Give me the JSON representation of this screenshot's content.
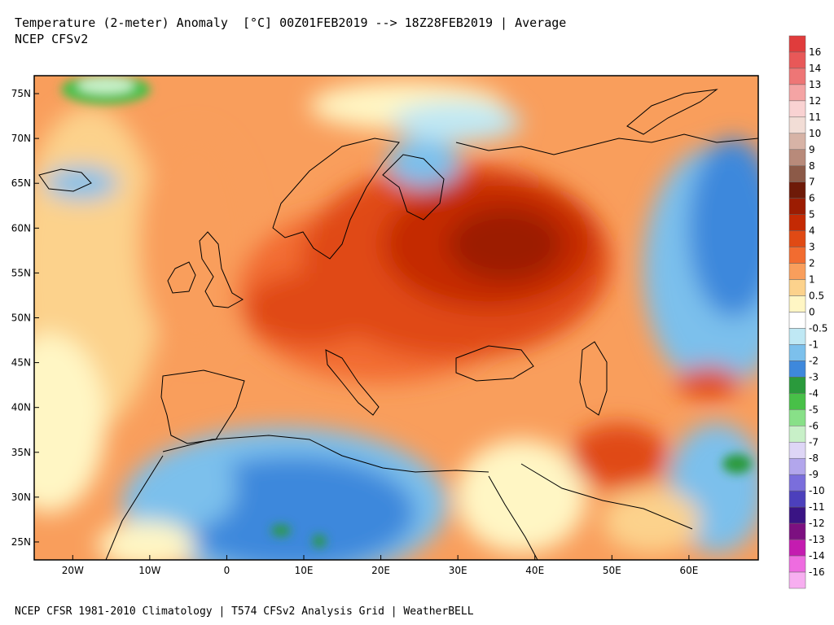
{
  "header": {
    "title": "Temperature (2-meter) Anomaly  [°C] 00Z01FEB2019 --> 18Z28FEB2019 | Average",
    "subtitle": "NCEP CFSv2"
  },
  "footer": {
    "credit": "NCEP CFSR 1981-2010 Climatology | T574 CFSv2 Analysis Grid | WeatherBELL"
  },
  "map_data": {
    "lon_range": [
      -25,
      69
    ],
    "lat_range": [
      23,
      77
    ],
    "lon_ticks": [
      {
        "value": -20,
        "label": "20W"
      },
      {
        "value": -10,
        "label": "10W"
      },
      {
        "value": 0,
        "label": "0"
      },
      {
        "value": 10,
        "label": "10E"
      },
      {
        "value": 20,
        "label": "20E"
      },
      {
        "value": 30,
        "label": "30E"
      },
      {
        "value": 40,
        "label": "40E"
      },
      {
        "value": 50,
        "label": "50E"
      },
      {
        "value": 60,
        "label": "60E"
      }
    ],
    "lat_ticks": [
      {
        "value": 75,
        "label": "75N"
      },
      {
        "value": 70,
        "label": "70N"
      },
      {
        "value": 65,
        "label": "65N"
      },
      {
        "value": 60,
        "label": "60N"
      },
      {
        "value": 55,
        "label": "55N"
      },
      {
        "value": 50,
        "label": "50N"
      },
      {
        "value": 45,
        "label": "45N"
      },
      {
        "value": 40,
        "label": "40N"
      },
      {
        "value": 35,
        "label": "35N"
      },
      {
        "value": 30,
        "label": "30N"
      },
      {
        "value": 25,
        "label": "25N"
      }
    ]
  },
  "colorbar": {
    "levels": [
      {
        "label": "16",
        "color": "#e03c3c"
      },
      {
        "label": "14",
        "color": "#e85858"
      },
      {
        "label": "13",
        "color": "#ee7676"
      },
      {
        "label": "12",
        "color": "#f4a4a4"
      },
      {
        "label": "11",
        "color": "#f9d2d2"
      },
      {
        "label": "10",
        "color": "#f2ddd6"
      },
      {
        "label": "9",
        "color": "#d7b3a6"
      },
      {
        "label": "8",
        "color": "#b88a7a"
      },
      {
        "label": "7",
        "color": "#8c5a48"
      },
      {
        "label": "6",
        "color": "#6e1a08"
      },
      {
        "label": "5",
        "color": "#9c1c02"
      },
      {
        "label": "4",
        "color": "#c42a04"
      },
      {
        "label": "3",
        "color": "#e04a14"
      },
      {
        "label": "2",
        "color": "#f26c30"
      },
      {
        "label": "1",
        "color": "#f99e5c"
      },
      {
        "label": "0.5",
        "color": "#fcd28c"
      },
      {
        "label": "0",
        "color": "#fff6c4"
      },
      {
        "label": "-0.5",
        "color": "#ffffff"
      },
      {
        "label": "-1",
        "color": "#bfe8f4"
      },
      {
        "label": "-2",
        "color": "#7cc0ec"
      },
      {
        "label": "-3",
        "color": "#3e88dc"
      },
      {
        "label": "-4",
        "color": "#2a9a3c"
      },
      {
        "label": "-5",
        "color": "#48c048"
      },
      {
        "label": "-6",
        "color": "#88e088"
      },
      {
        "label": "-7",
        "color": "#c8f0c8"
      },
      {
        "label": "-8",
        "color": "#ded6f6"
      },
      {
        "label": "-9",
        "color": "#b2a6ec"
      },
      {
        "label": "-10",
        "color": "#7a6edc"
      },
      {
        "label": "-11",
        "color": "#4c40bc"
      },
      {
        "label": "-12",
        "color": "#3a1484"
      },
      {
        "label": "-13",
        "color": "#7c1080"
      },
      {
        "label": "-14",
        "color": "#c41cb0"
      },
      {
        "label": "-16",
        "color": "#ee6ce0"
      },
      {
        "label": "",
        "color": "#f7aef0"
      }
    ]
  }
}
